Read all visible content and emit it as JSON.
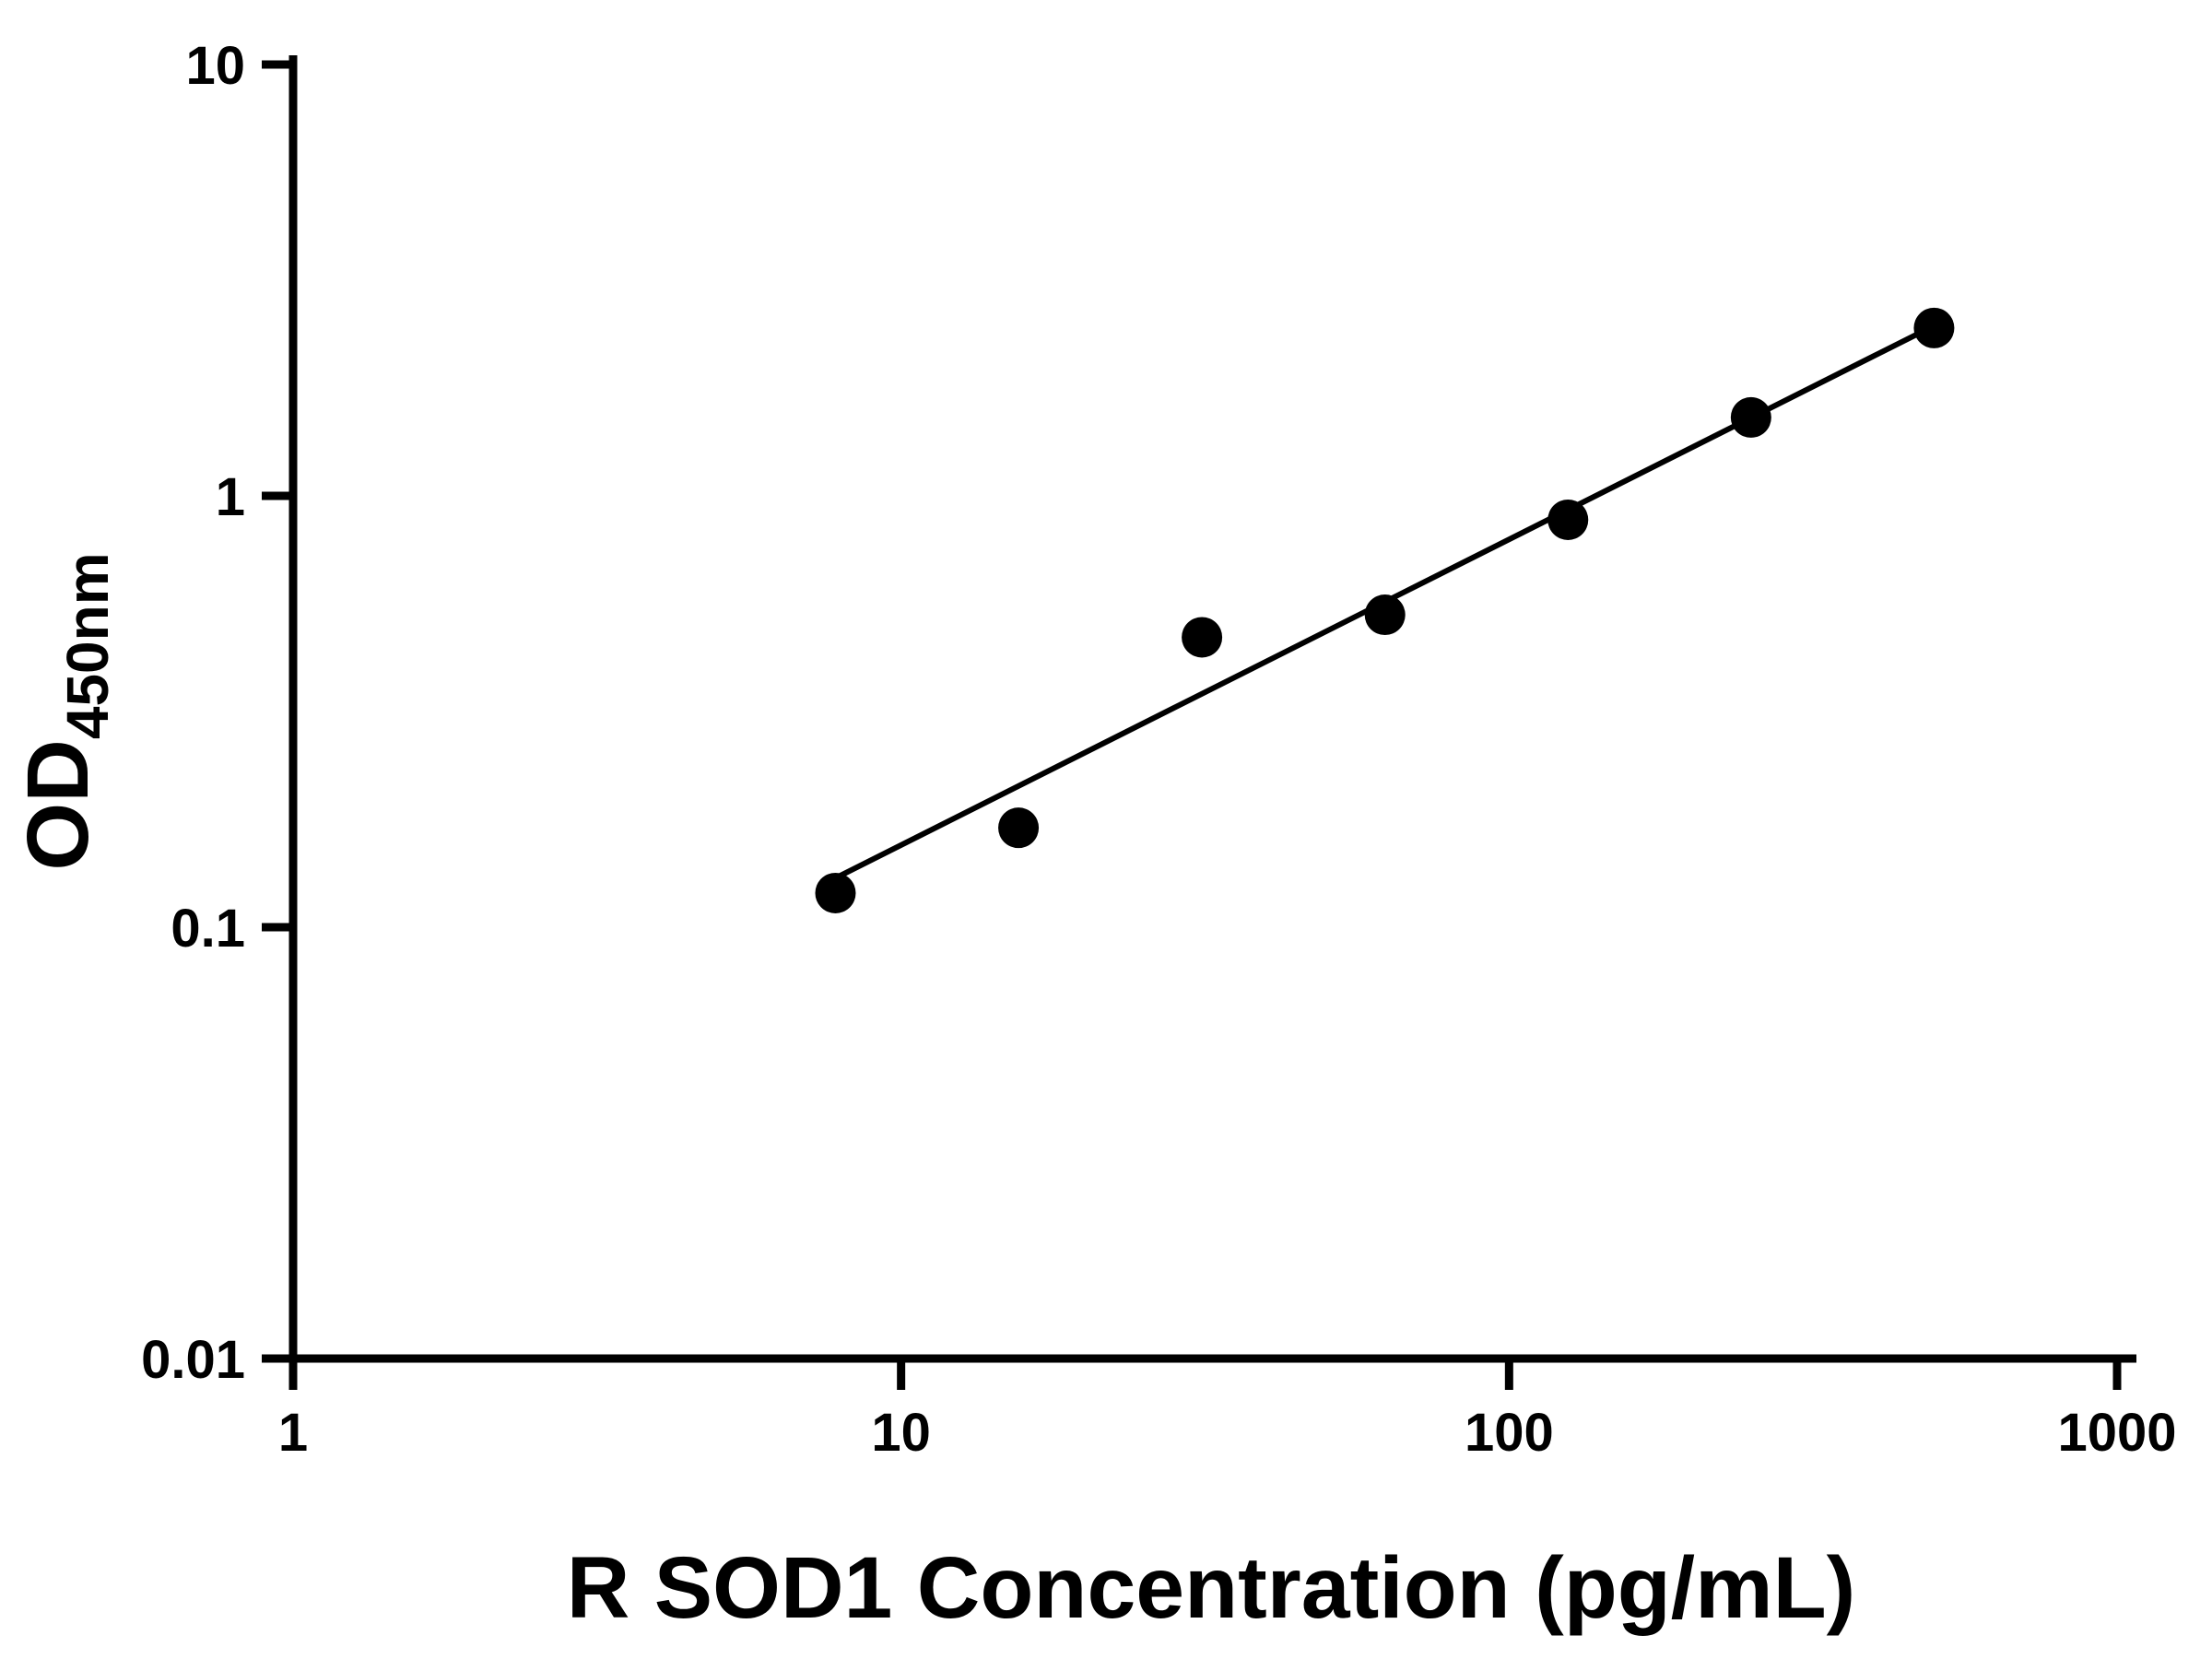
{
  "chart_data": {
    "type": "scatter",
    "title": "",
    "xlabel": "R SOD1 Concentration (pg/mL)",
    "ylabel": {
      "main": "OD",
      "sub": "450nm"
    },
    "x_scale": "log",
    "y_scale": "log",
    "xlim": [
      1,
      1000
    ],
    "ylim": [
      0.01,
      10
    ],
    "grid": false,
    "legend": null,
    "axis_color": "#000000",
    "background_color": "#ffffff",
    "x_ticks": [
      {
        "value": 1,
        "label": "1"
      },
      {
        "value": 10,
        "label": "10"
      },
      {
        "value": 100,
        "label": "100"
      },
      {
        "value": 1000,
        "label": "1000"
      }
    ],
    "y_ticks": [
      {
        "value": 0.01,
        "label": "0.01"
      },
      {
        "value": 0.1,
        "label": "0.1"
      },
      {
        "value": 1,
        "label": "1"
      },
      {
        "value": 10,
        "label": "10"
      }
    ],
    "series": [
      {
        "marker": "circle",
        "color": "#000000",
        "x": [
          7.8,
          15.6,
          31.25,
          62.5,
          125,
          250,
          500
        ],
        "y": [
          0.12,
          0.17,
          0.47,
          0.53,
          0.88,
          1.52,
          2.45
        ]
      }
    ],
    "trendline": {
      "color": "#000000",
      "x": [
        7.8,
        500
      ],
      "y": [
        0.13,
        2.48
      ]
    }
  }
}
